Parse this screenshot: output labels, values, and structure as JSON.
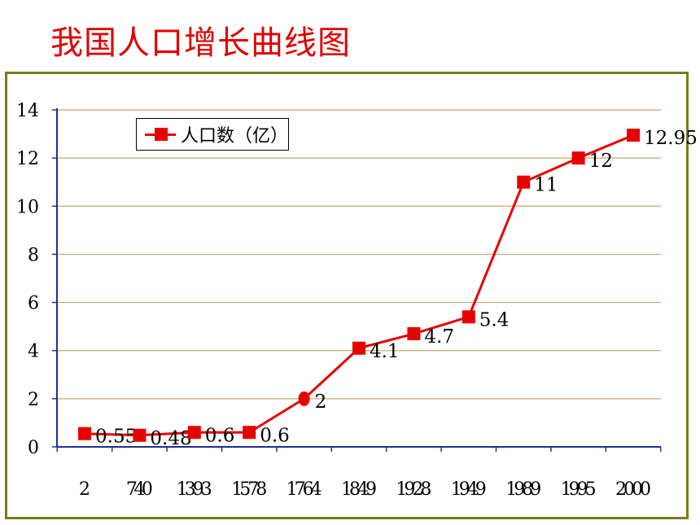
{
  "title": "我国人口增长曲线图",
  "chart_data": {
    "type": "line",
    "categories": [
      "2",
      "740",
      "1393",
      "1578",
      "1764",
      "1849",
      "1928",
      "1949",
      "1989",
      "1995",
      "2000"
    ],
    "series": [
      {
        "name": "人口数（亿）",
        "values": [
          0.55,
          0.48,
          0.6,
          0.6,
          2,
          4.1,
          4.7,
          5.4,
          11,
          12,
          12.95
        ],
        "labels": [
          "0.55",
          "0.48",
          "0.6",
          "0.6",
          "2",
          "4.1",
          "4.7",
          "5.4",
          "11",
          "12",
          "12.95"
        ],
        "color": "#e80000",
        "marker": "square",
        "circle_marker_indices": [
          4
        ]
      }
    ],
    "ylim": [
      0,
      14
    ],
    "yticks": [
      "0",
      "2",
      "4",
      "6",
      "8",
      "10",
      "12",
      "14"
    ],
    "xlabel": "",
    "ylabel": "",
    "grid": true,
    "grid_color": "#c8a86a",
    "axis_color": "#1f2f8f",
    "frame_color": "#7a7a1c",
    "legend_position": "top-left"
  }
}
